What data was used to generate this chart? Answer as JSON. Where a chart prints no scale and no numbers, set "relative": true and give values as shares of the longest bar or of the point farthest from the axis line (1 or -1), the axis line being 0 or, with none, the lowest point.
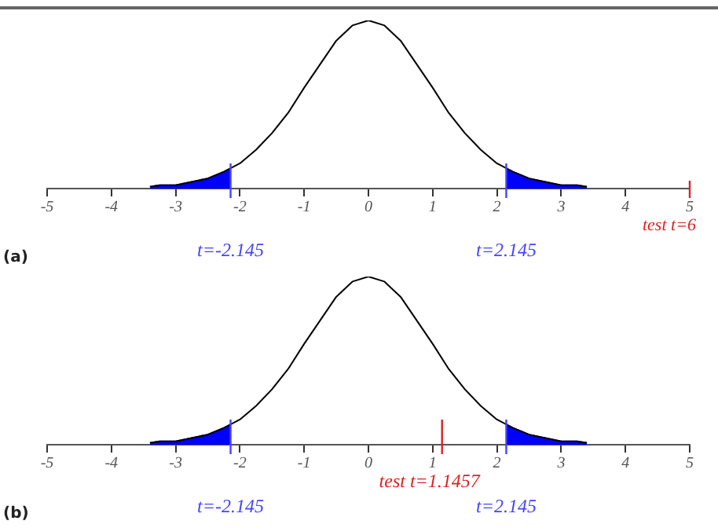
{
  "chart_data": [
    {
      "type": "line",
      "title": "(a)",
      "relative": true,
      "xlim": [
        -5,
        5
      ],
      "xticks": [
        -5,
        -4,
        -3,
        -2,
        -1,
        0,
        1,
        2,
        3,
        4,
        5
      ],
      "grid": false,
      "legend": false,
      "tick_labels": "x",
      "marker": "none",
      "series": [
        {
          "type": "line",
          "color": "#000000",
          "x": [
            -3.4,
            -3.25,
            -3,
            -2.75,
            -2.5,
            -2.25,
            -2,
            -1.75,
            -1.5,
            -1.25,
            -1,
            -0.75,
            -0.5,
            -0.25,
            0,
            0.25,
            0.5,
            0.75,
            1,
            1.25,
            1.5,
            1.75,
            2,
            2.25,
            2.5,
            2.75,
            3,
            3.25,
            3.4
          ],
          "values": [
            0.01,
            0.02,
            0.02,
            0.04,
            0.06,
            0.1,
            0.15,
            0.23,
            0.33,
            0.45,
            0.6,
            0.74,
            0.88,
            0.97,
            1,
            0.97,
            0.88,
            0.74,
            0.6,
            0.45,
            0.33,
            0.23,
            0.15,
            0.1,
            0.06,
            0.04,
            0.02,
            0.02,
            0.01
          ]
        },
        {
          "type": "area",
          "color": "#0000ff",
          "x": [
            -3.4,
            -3.25,
            -3,
            -2.75,
            -2.5,
            -2.25,
            -2.145
          ],
          "values": [
            0.01,
            0.02,
            0.02,
            0.04,
            0.06,
            0.1,
            0.12
          ]
        },
        {
          "type": "area",
          "color": "#0000ff",
          "x": [
            2.145,
            2.25,
            2.5,
            2.75,
            3,
            3.25,
            3.4
          ],
          "values": [
            0.12,
            0.1,
            0.06,
            0.04,
            0.02,
            0.02,
            0.01
          ]
        }
      ],
      "ref_lines": [
        {
          "axis": "x",
          "value": -2.145,
          "label": "t=-2.145",
          "color": "#4444ff"
        },
        {
          "axis": "x",
          "value": 2.145,
          "label": "t=2.145",
          "color": "#4444ff"
        }
      ],
      "annotations": [
        "test t=6"
      ]
    },
    {
      "type": "line",
      "title": "(b)",
      "relative": true,
      "xlim": [
        -5,
        5
      ],
      "xticks": [
        -5,
        -4,
        -3,
        -2,
        -1,
        0,
        1,
        2,
        3,
        4,
        5
      ],
      "grid": false,
      "legend": false,
      "tick_labels": "x",
      "marker": "none",
      "series": [
        {
          "type": "line",
          "color": "#000000",
          "x": [
            -3.4,
            -3.25,
            -3,
            -2.75,
            -2.5,
            -2.25,
            -2,
            -1.75,
            -1.5,
            -1.25,
            -1,
            -0.75,
            -0.5,
            -0.25,
            0,
            0.25,
            0.5,
            0.75,
            1,
            1.25,
            1.5,
            1.75,
            2,
            2.25,
            2.5,
            2.75,
            3,
            3.25,
            3.4
          ],
          "values": [
            0.01,
            0.02,
            0.02,
            0.04,
            0.06,
            0.1,
            0.15,
            0.23,
            0.33,
            0.45,
            0.6,
            0.74,
            0.88,
            0.97,
            1,
            0.97,
            0.88,
            0.74,
            0.6,
            0.45,
            0.33,
            0.23,
            0.15,
            0.1,
            0.06,
            0.04,
            0.02,
            0.02,
            0.01
          ]
        },
        {
          "type": "area",
          "color": "#0000ff",
          "x": [
            -3.4,
            -3.25,
            -3,
            -2.75,
            -2.5,
            -2.25,
            -2.145
          ],
          "values": [
            0.01,
            0.02,
            0.02,
            0.04,
            0.06,
            0.1,
            0.12
          ]
        },
        {
          "type": "area",
          "color": "#0000ff",
          "x": [
            2.145,
            2.25,
            2.5,
            2.75,
            3,
            3.25,
            3.4
          ],
          "values": [
            0.12,
            0.1,
            0.06,
            0.04,
            0.02,
            0.02,
            0.01
          ]
        }
      ],
      "ref_lines": [
        {
          "axis": "x",
          "value": -2.145,
          "label": "t=-2.145",
          "color": "#4444ff"
        },
        {
          "axis": "x",
          "value": 2.145,
          "label": "t=2.145",
          "color": "#4444ff"
        },
        {
          "axis": "x",
          "value": 1.1457,
          "label": "test t=1.1457",
          "color": "#dd2222"
        }
      ]
    }
  ]
}
